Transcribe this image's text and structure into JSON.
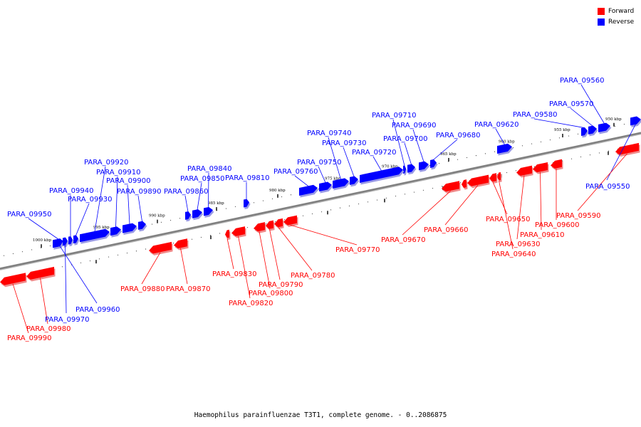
{
  "legend": [
    {
      "label": "Forward",
      "color": "#ff0000"
    },
    {
      "label": "Reverse",
      "color": "#0000ff"
    }
  ],
  "caption": "Haemophilus parainfluenzae T3T1, complete genome. - 0..2086875",
  "colors": {
    "forward": "#ff0000",
    "reverse": "#0000ff",
    "backbone": "#808080"
  },
  "axis": {
    "tick_labels": [
      "950 kbp",
      "955 kbp",
      "960 kbp",
      "965 kbp",
      "970 kbp",
      "975 kbp",
      "980 kbp",
      "985 kbp",
      "990 kbp",
      "995 kbp",
      "1000 kbp"
    ]
  },
  "genes": {
    "reverse": [
      "PARA_09560",
      "PARA_09570",
      "PARA_09580",
      "PARA_09620",
      "PARA_09680",
      "PARA_09690",
      "PARA_09700",
      "PARA_09710",
      "PARA_09720",
      "PARA_09730",
      "PARA_09740",
      "PARA_09750",
      "PARA_09760",
      "PARA_09810",
      "PARA_09840",
      "PARA_09850",
      "PARA_09860",
      "PARA_09890",
      "PARA_09900",
      "PARA_09910",
      "PARA_09920",
      "PARA_09930",
      "PARA_09940",
      "PARA_09950",
      "PARA_09960",
      "PARA_09970",
      "PARA_09550"
    ],
    "forward": [
      "PARA_09590",
      "PARA_09600",
      "PARA_09610",
      "PARA_09630",
      "PARA_09640",
      "PARA_09650",
      "PARA_09660",
      "PARA_09670",
      "PARA_09770",
      "PARA_09780",
      "PARA_09790",
      "PARA_09800",
      "PARA_09820",
      "PARA_09830",
      "PARA_09870",
      "PARA_09880",
      "PARA_09980",
      "PARA_09990"
    ]
  }
}
